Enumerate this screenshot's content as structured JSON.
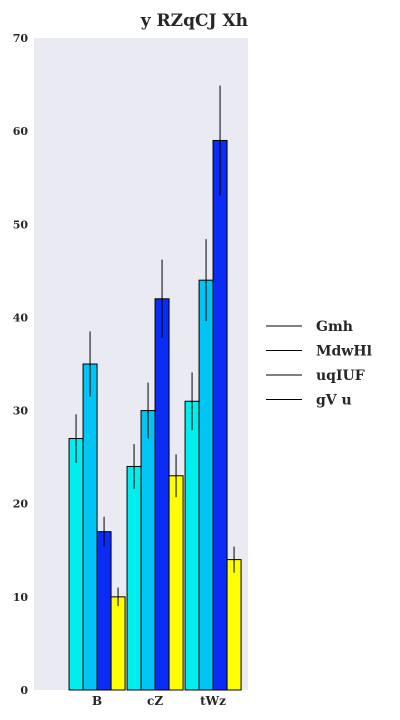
{
  "chart_data": {
    "type": "bar",
    "title": "y RZqCJ Xh",
    "xlabel": "",
    "ylabel": "",
    "categories": [
      "B",
      "cZ",
      "tWz"
    ],
    "series": [
      {
        "name": "Gmh",
        "values": [
          27,
          24,
          31
        ],
        "errors": [
          2.6,
          2.4,
          3.1
        ],
        "color": "#00eeee"
      },
      {
        "name": "MdwHl",
        "values": [
          35,
          30,
          44
        ],
        "errors": [
          3.5,
          3.0,
          4.4
        ],
        "color": "#00c5f5"
      },
      {
        "name": "uqIUF",
        "values": [
          17,
          42,
          59
        ],
        "errors": [
          1.6,
          4.2,
          5.9
        ],
        "color": "#0a2cf5"
      },
      {
        "name": "gV u",
        "values": [
          10,
          23,
          14
        ],
        "errors": [
          1.0,
          2.3,
          1.4
        ],
        "color": "#ffff00"
      }
    ],
    "ylim": [
      0,
      70
    ],
    "yticks": [
      0,
      10,
      20,
      30,
      40,
      50,
      60,
      70
    ],
    "grid": false,
    "legend_position": "right",
    "background": "#eaeaf2"
  }
}
